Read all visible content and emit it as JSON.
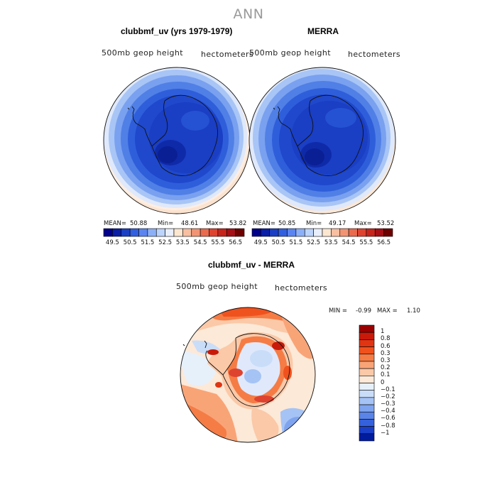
{
  "figure": {
    "title": "ANN",
    "panels": [
      {
        "title": "clubbmf_uv (yrs 1979-1979)",
        "left_label": "500mb geop height",
        "right_label": "hectometers",
        "stats": {
          "mean_label": "MEAN=",
          "mean": "50.88",
          "min_label": "Min=",
          "min": "48.61",
          "max_label": "Max=",
          "max": "53.82"
        }
      },
      {
        "title": "MERRA",
        "left_label": "500mb geop height",
        "right_label": "hectometers",
        "stats": {
          "mean_label": "MEAN=",
          "mean": "50.85",
          "min_label": "Min=",
          "min": "49.17",
          "max_label": "Max=",
          "max": "53.52"
        }
      },
      {
        "title": "clubbmf_uv - MERRA",
        "left_label": "500mb geop height",
        "right_label": "hectometers",
        "stats": {
          "min_label": "MIN =",
          "min": "-0.99",
          "max_label": "MAX =",
          "max": "1.10"
        }
      }
    ],
    "field_colorbar": {
      "ticks": [
        "49.5",
        "50.5",
        "51.5",
        "52.5",
        "53.5",
        "54.5",
        "55.5",
        "56.5"
      ],
      "colors": [
        "#00008b",
        "#0a1fa6",
        "#1a3fc4",
        "#3060e0",
        "#5a85f0",
        "#8cb0f8",
        "#bcd4fb",
        "#e8eefc",
        "#fde6d0",
        "#f8bfa0",
        "#f29474",
        "#ea6a4e",
        "#de4330",
        "#c7241c",
        "#a50f15",
        "#6e0000"
      ]
    },
    "diff_colorbar": {
      "ticks": [
        "1",
        "0.8",
        "0.6",
        "0.3",
        "0.3",
        "0.2",
        "0.1",
        "0",
        "−0.1",
        "−0.2",
        "−0.3",
        "−0.4",
        "−0.6",
        "−0.8",
        "−1"
      ],
      "colors": [
        "#9b0000",
        "#c81a0a",
        "#e03412",
        "#f0521e",
        "#f57c45",
        "#f9a477",
        "#fbc9a8",
        "#fce9d8",
        "#e6f0fb",
        "#c9ddf9",
        "#a5c3f5",
        "#7fa4ef",
        "#5a84e8",
        "#3561dc",
        "#1a3ec8",
        "#001b9e"
      ]
    },
    "colors": {
      "title": "#9a9a9a",
      "coast": "#111111"
    }
  }
}
